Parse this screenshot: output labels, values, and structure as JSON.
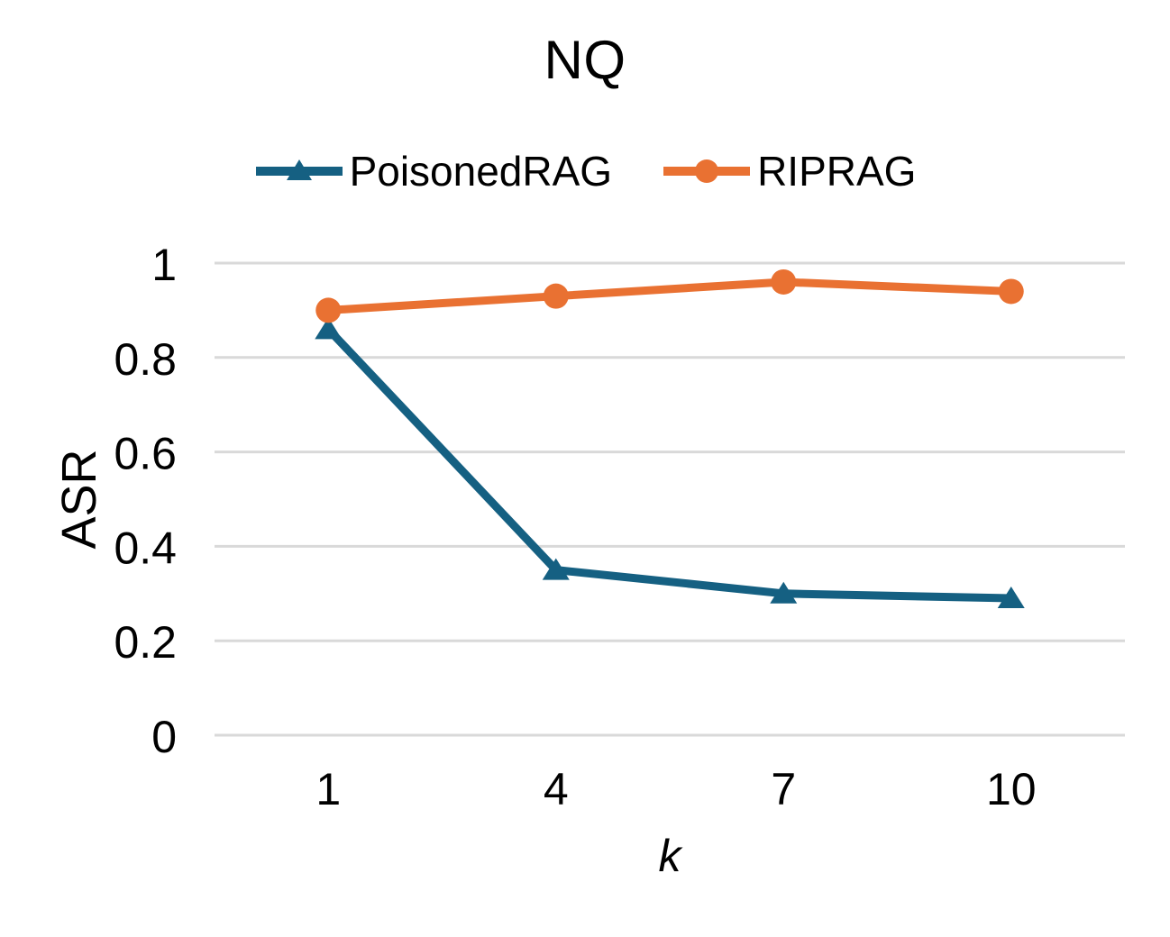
{
  "chart_data": {
    "type": "line",
    "title": "NQ",
    "xlabel": "k",
    "ylabel": "ASR",
    "categories": [
      "1",
      "4",
      "7",
      "10"
    ],
    "series": [
      {
        "name": "PoisonedRAG",
        "values": [
          0.86,
          0.35,
          0.3,
          0.29
        ],
        "color": "#156082",
        "marker": "triangle"
      },
      {
        "name": "RIPRAG",
        "values": [
          0.9,
          0.93,
          0.96,
          0.94
        ],
        "color": "#E97132",
        "marker": "circle"
      }
    ],
    "ylim": [
      0,
      1
    ],
    "yticks": [
      0,
      0.2,
      0.4,
      0.6,
      0.8,
      1
    ],
    "ytick_labels": [
      "0",
      "0.2",
      "0.4",
      "0.6",
      "0.8",
      "1"
    ],
    "grid": "horizontal",
    "gridline_color": "#D9D9D9",
    "text_color": "#000000",
    "background_color": "#FFFFFF",
    "legend_position": "top-center"
  }
}
